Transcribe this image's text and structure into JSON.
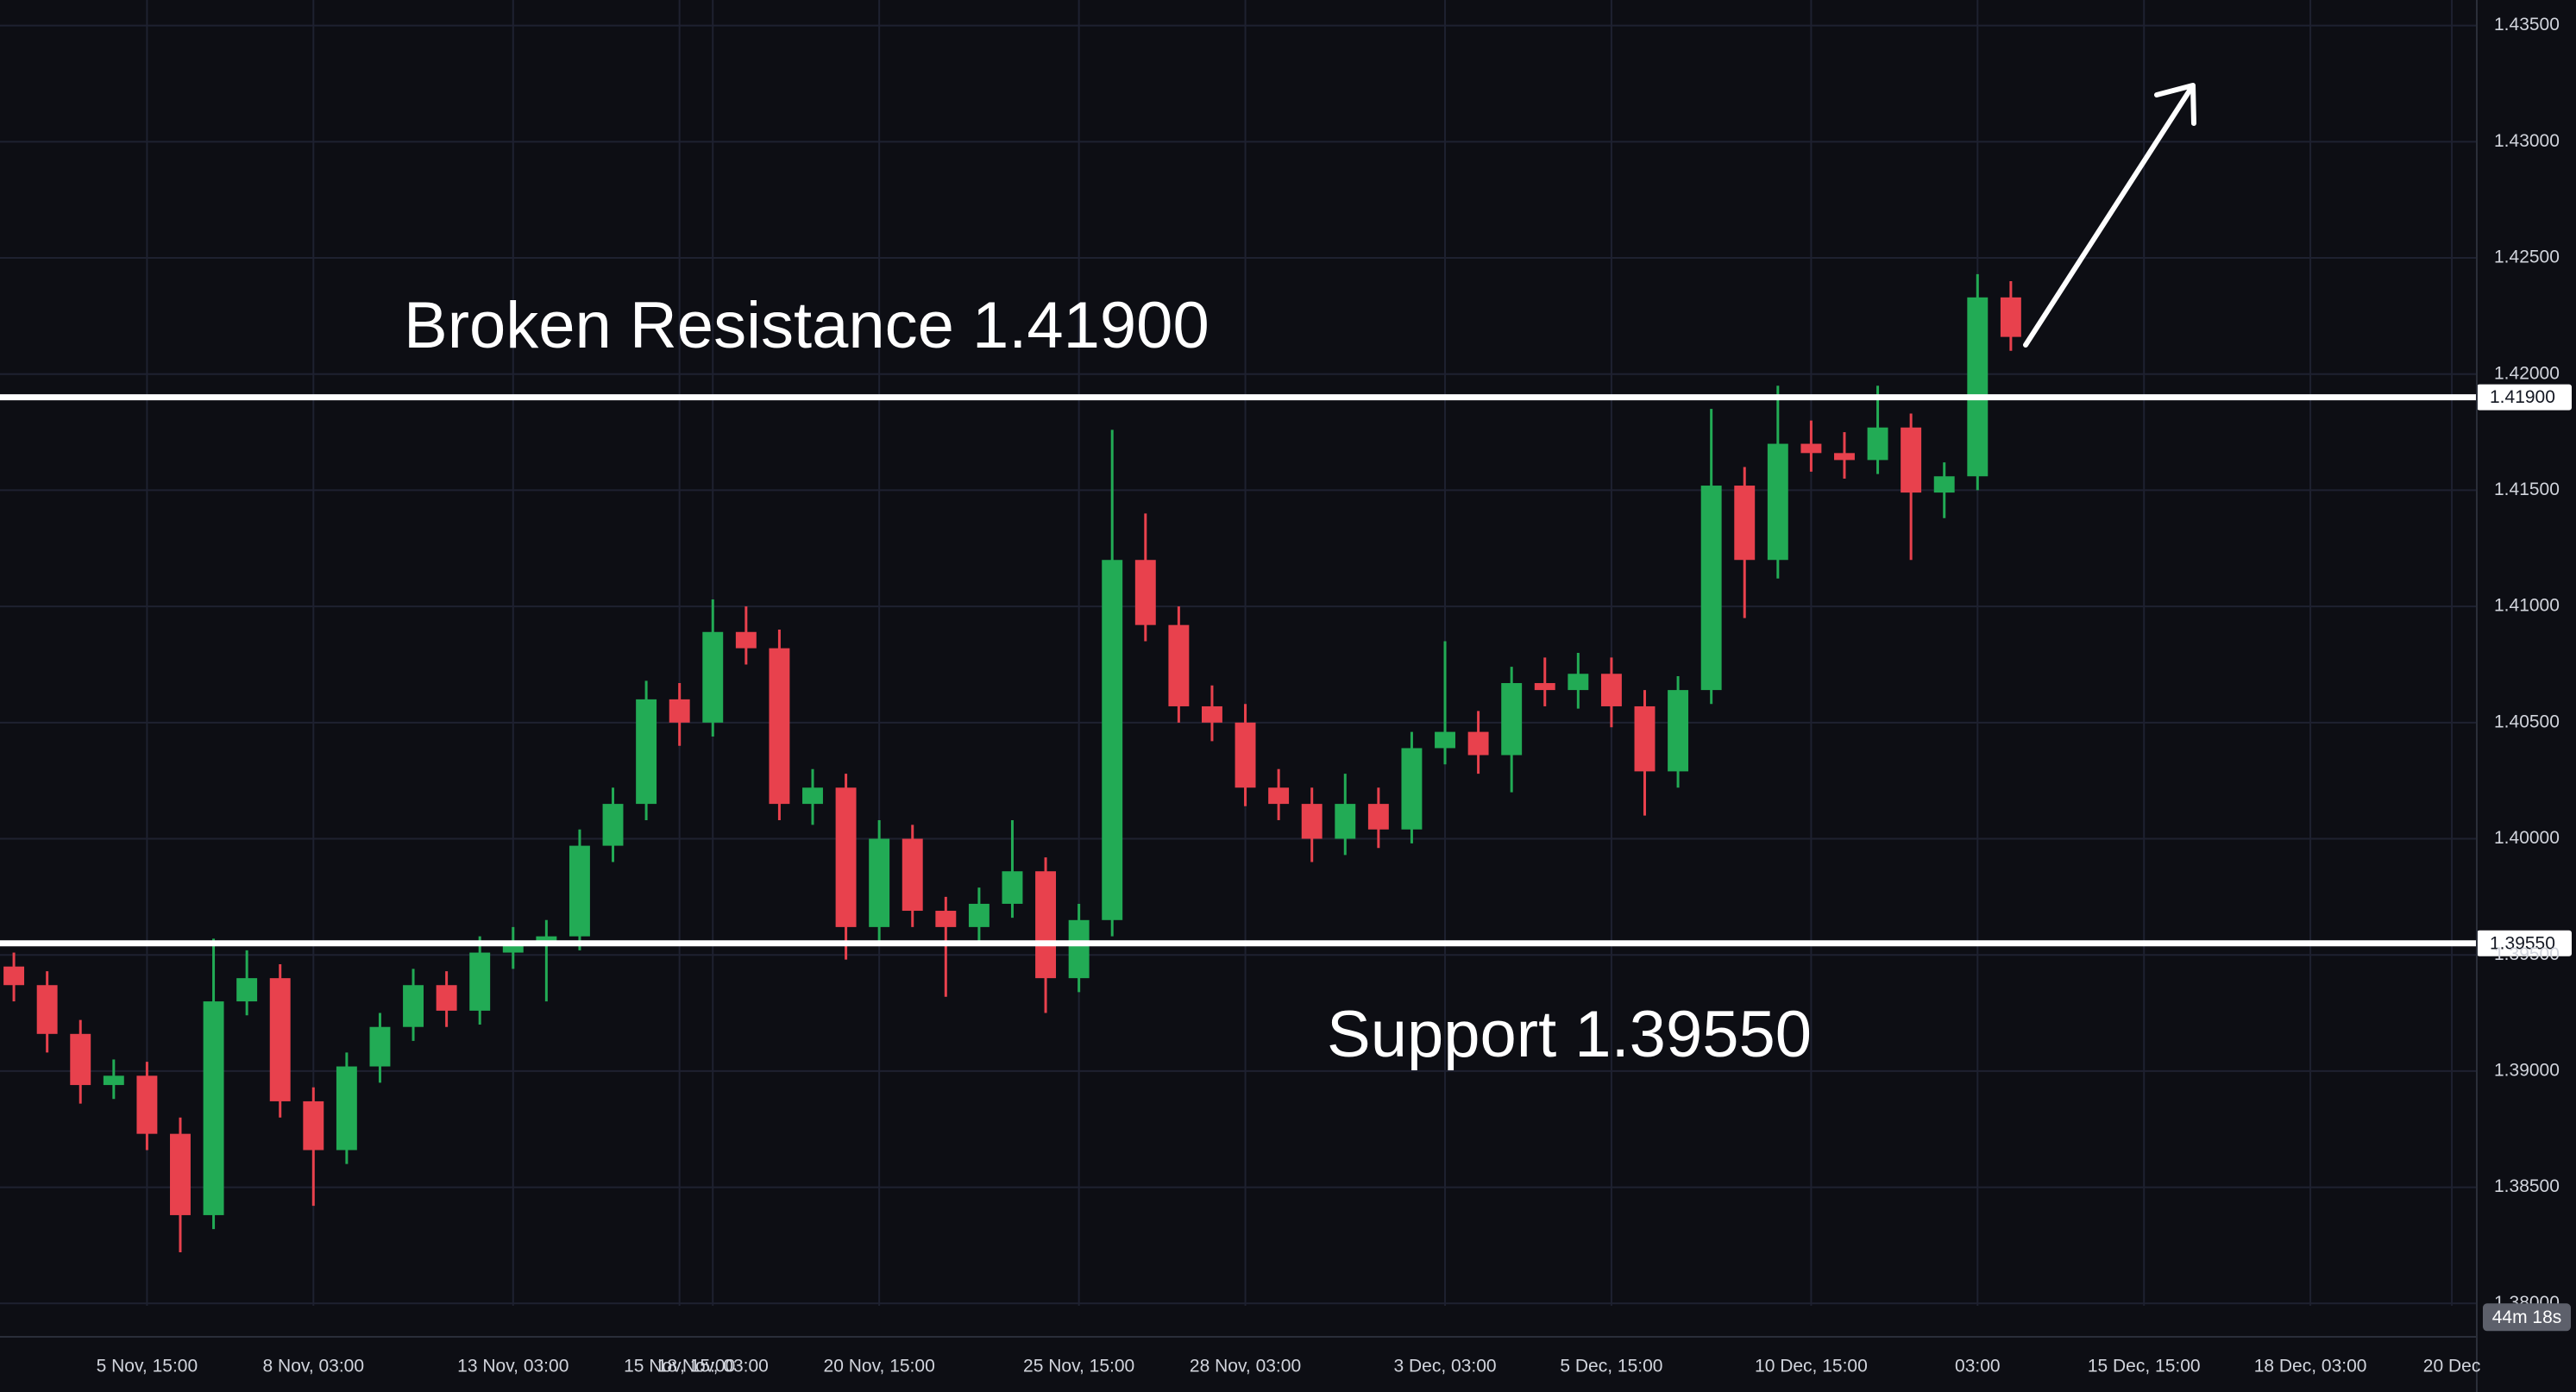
{
  "chart_data": {
    "type": "candlestick",
    "up_color": "#22ab55",
    "down_color": "#e8414d",
    "grid": true,
    "x": [
      -48,
      -36,
      -24,
      -12,
      0,
      12,
      24,
      36,
      48,
      60,
      72,
      84,
      96,
      108,
      120,
      132,
      144,
      156,
      168,
      180,
      192,
      204,
      216,
      228,
      240,
      252,
      264,
      276,
      288,
      300,
      312,
      324,
      336,
      348,
      360,
      372,
      384,
      396,
      408,
      420,
      432,
      444,
      456,
      468,
      480,
      492,
      504,
      516,
      528,
      540,
      552,
      564,
      576,
      588,
      600,
      612,
      624,
      636,
      648,
      660,
      672
    ],
    "open": [
      1.3945,
      1.3937,
      1.3916,
      1.3894,
      1.3898,
      1.3873,
      1.3838,
      1.393,
      1.394,
      1.3887,
      1.3866,
      1.3902,
      1.3919,
      1.3937,
      1.3926,
      1.3951,
      1.3955,
      1.3958,
      1.3997,
      1.4015,
      1.406,
      1.405,
      1.4089,
      1.4082,
      1.4015,
      1.4022,
      1.3962,
      1.4,
      1.3969,
      1.3962,
      1.3972,
      1.3986,
      1.394,
      1.3965,
      1.412,
      1.4092,
      1.4057,
      1.405,
      1.4022,
      1.4015,
      1.4,
      1.4015,
      1.4004,
      1.4039,
      1.4046,
      1.4036,
      1.4067,
      1.4064,
      1.4071,
      1.4057,
      1.4029,
      1.4064,
      1.4152,
      1.412,
      1.417,
      1.4166,
      1.4163,
      1.4177,
      1.4149,
      1.4156,
      1.4233
    ],
    "high": [
      1.3951,
      1.3943,
      1.3922,
      1.3905,
      1.3904,
      1.388,
      1.3957,
      1.3952,
      1.3946,
      1.3893,
      1.3908,
      1.3925,
      1.3944,
      1.3943,
      1.3958,
      1.3962,
      1.3965,
      1.4004,
      1.4022,
      1.4068,
      1.4067,
      1.4103,
      1.41,
      1.409,
      1.403,
      1.4028,
      1.4008,
      1.4006,
      1.3975,
      1.3979,
      1.4008,
      1.3992,
      1.3972,
      1.4176,
      1.414,
      1.41,
      1.4066,
      1.4058,
      1.403,
      1.4022,
      1.4028,
      1.4022,
      1.4046,
      1.4085,
      1.4055,
      1.4074,
      1.4078,
      1.408,
      1.4078,
      1.4064,
      1.407,
      1.4185,
      1.416,
      1.4195,
      1.418,
      1.4175,
      1.4195,
      1.4183,
      1.4162,
      1.4243,
      1.424
    ],
    "low": [
      1.393,
      1.3908,
      1.3886,
      1.3888,
      1.3866,
      1.3822,
      1.3832,
      1.3924,
      1.388,
      1.3842,
      1.386,
      1.3895,
      1.3913,
      1.3919,
      1.392,
      1.3944,
      1.393,
      1.3952,
      1.399,
      1.4008,
      1.404,
      1.4044,
      1.4075,
      1.4008,
      1.4006,
      1.3948,
      1.3955,
      1.3962,
      1.3932,
      1.3955,
      1.3966,
      1.3925,
      1.3934,
      1.3958,
      1.4085,
      1.405,
      1.4042,
      1.4014,
      1.4008,
      1.399,
      1.3993,
      1.3996,
      1.3998,
      1.4032,
      1.4028,
      1.402,
      1.4057,
      1.4056,
      1.4048,
      1.401,
      1.4022,
      1.4058,
      1.4095,
      1.4112,
      1.4158,
      1.4155,
      1.4157,
      1.412,
      1.4138,
      1.415,
      1.421
    ],
    "close": [
      1.3937,
      1.3916,
      1.3894,
      1.3898,
      1.3873,
      1.3838,
      1.393,
      1.394,
      1.3887,
      1.3866,
      1.3902,
      1.3919,
      1.3937,
      1.3926,
      1.3951,
      1.3955,
      1.3958,
      1.3997,
      1.4015,
      1.406,
      1.405,
      1.4089,
      1.4082,
      1.4015,
      1.4022,
      1.3962,
      1.4,
      1.3969,
      1.3962,
      1.3972,
      1.3986,
      1.394,
      1.3965,
      1.412,
      1.4092,
      1.4057,
      1.405,
      1.4022,
      1.4015,
      1.4,
      1.4015,
      1.4004,
      1.4039,
      1.4046,
      1.4036,
      1.4067,
      1.4064,
      1.4071,
      1.4057,
      1.4029,
      1.4064,
      1.4152,
      1.412,
      1.417,
      1.4166,
      1.4163,
      1.4177,
      1.4149,
      1.4156,
      1.4233,
      1.4216
    ],
    "xlim": [
      -53,
      840
    ],
    "ylim": [
      1.3799,
      1.4361
    ],
    "xticks": [
      {
        "value": 0,
        "label": "5 Nov, 15:00"
      },
      {
        "value": 60,
        "label": "8 Nov, 03:00"
      },
      {
        "value": 132,
        "label": "13 Nov, 03:00"
      },
      {
        "value": 192,
        "label": "15 Nov, 15:00"
      },
      {
        "value": 204,
        "label": "18 Nov, 03:00"
      },
      {
        "value": 264,
        "label": "20 Nov, 15:00"
      },
      {
        "value": 336,
        "label": "25 Nov, 15:00"
      },
      {
        "value": 396,
        "label": "28 Nov, 03:00"
      },
      {
        "value": 468,
        "label": "3 Dec, 03:00"
      },
      {
        "value": 528,
        "label": "5 Dec, 15:00"
      },
      {
        "value": 600,
        "label": "10 Dec, 15:00"
      },
      {
        "value": 660,
        "label": "03:00"
      },
      {
        "value": 720,
        "label": "15 Dec, 15:00"
      },
      {
        "value": 780,
        "label": "18 Dec, 03:00"
      },
      {
        "value": 831,
        "label": "20 Dec"
      }
    ],
    "yticks": [
      {
        "value": 1.435,
        "label": "1.43500"
      },
      {
        "value": 1.43,
        "label": "1.43000"
      },
      {
        "value": 1.425,
        "label": "1.42500"
      },
      {
        "value": 1.42,
        "label": "1.42000"
      },
      {
        "value": 1.415,
        "label": "1.41500"
      },
      {
        "value": 1.41,
        "label": "1.41000"
      },
      {
        "value": 1.405,
        "label": "1.40500"
      },
      {
        "value": 1.4,
        "label": "1.40000"
      },
      {
        "value": 1.395,
        "label": "1.39500"
      },
      {
        "value": 1.39,
        "label": "1.39000"
      },
      {
        "value": 1.385,
        "label": "1.38500"
      },
      {
        "value": 1.38,
        "label": "1.38000"
      }
    ],
    "levels": [
      {
        "value": 1.419,
        "label": "1.41900",
        "color": "#ffffff"
      },
      {
        "value": 1.3955,
        "label": "1.39550",
        "color": "#ffffff"
      }
    ],
    "annotations": [
      "Broken Resistance 1.41900",
      "Support 1.39550"
    ],
    "countdown": "44m 18s"
  }
}
